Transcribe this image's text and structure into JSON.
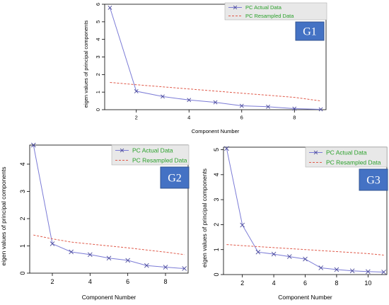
{
  "colors": {
    "actual": "#7b7bd6",
    "resampled": "#e05a4a",
    "legend_text": "#2aa02a",
    "legend_bg": "#e8e8e8",
    "badge_bg": "#4472c4",
    "badge_border": "#2f528f"
  },
  "chart_data": [
    {
      "type": "line",
      "badge": "G1",
      "xlabel": "Component Number",
      "ylabel": "eigen values of principal components",
      "x": [
        1,
        2,
        3,
        4,
        5,
        6,
        7,
        8,
        9
      ],
      "series": [
        {
          "name": "PC  Actual Data",
          "style": "solid-x-markers",
          "values": [
            5.8,
            1.05,
            0.75,
            0.55,
            0.42,
            0.22,
            0.17,
            0.06,
            0.02
          ]
        },
        {
          "name": "PC  Resampled Data",
          "style": "dashed",
          "values": [
            1.55,
            1.42,
            1.3,
            1.18,
            1.06,
            0.94,
            0.82,
            0.7,
            0.5
          ]
        }
      ],
      "xlim": [
        0.8,
        9.2
      ],
      "ylim": [
        0,
        6
      ],
      "xticks": [
        2,
        4,
        6,
        8
      ],
      "yticks": [
        0,
        1,
        2,
        3,
        4,
        5,
        6
      ],
      "legend": "top-right"
    },
    {
      "type": "line",
      "badge": "G2",
      "xlabel": "Component Number",
      "ylabel": "eigen values of principal components",
      "x": [
        1,
        2,
        3,
        4,
        5,
        6,
        7,
        8,
        9
      ],
      "series": [
        {
          "name": "PC  Actual Data",
          "style": "solid-x-markers",
          "values": [
            4.7,
            1.08,
            0.78,
            0.68,
            0.55,
            0.47,
            0.28,
            0.22,
            0.17
          ]
        },
        {
          "name": "PC  Resampled Data",
          "style": "dashed",
          "values": [
            1.4,
            1.26,
            1.14,
            1.07,
            1.0,
            0.93,
            0.85,
            0.77,
            0.68
          ]
        }
      ],
      "xlim": [
        0.8,
        9.2
      ],
      "ylim": [
        0,
        4.7
      ],
      "xticks": [
        2,
        4,
        6,
        8
      ],
      "yticks": [
        0,
        1,
        2,
        3,
        4
      ],
      "legend": "top-right"
    },
    {
      "type": "line",
      "badge": "G3",
      "xlabel": "Component Number",
      "ylabel": "eigen values of principal components",
      "x": [
        1,
        2,
        3,
        4,
        5,
        6,
        7,
        8,
        9,
        10,
        11
      ],
      "series": [
        {
          "name": "PC  Actual Data",
          "style": "solid-x-markers",
          "values": [
            5.05,
            1.98,
            0.9,
            0.82,
            0.72,
            0.62,
            0.27,
            0.2,
            0.15,
            0.12,
            0.1
          ]
        },
        {
          "name": "PC  Resampled Data",
          "style": "dashed",
          "values": [
            1.2,
            1.16,
            1.12,
            1.08,
            1.04,
            1.0,
            0.96,
            0.92,
            0.88,
            0.84,
            0.78
          ]
        }
      ],
      "xlim": [
        0.8,
        11.2
      ],
      "ylim": [
        0,
        5.1
      ],
      "xticks": [
        2,
        4,
        6,
        8,
        10
      ],
      "yticks": [
        0,
        1,
        2,
        3,
        4,
        5
      ],
      "legend": "top-right"
    }
  ]
}
